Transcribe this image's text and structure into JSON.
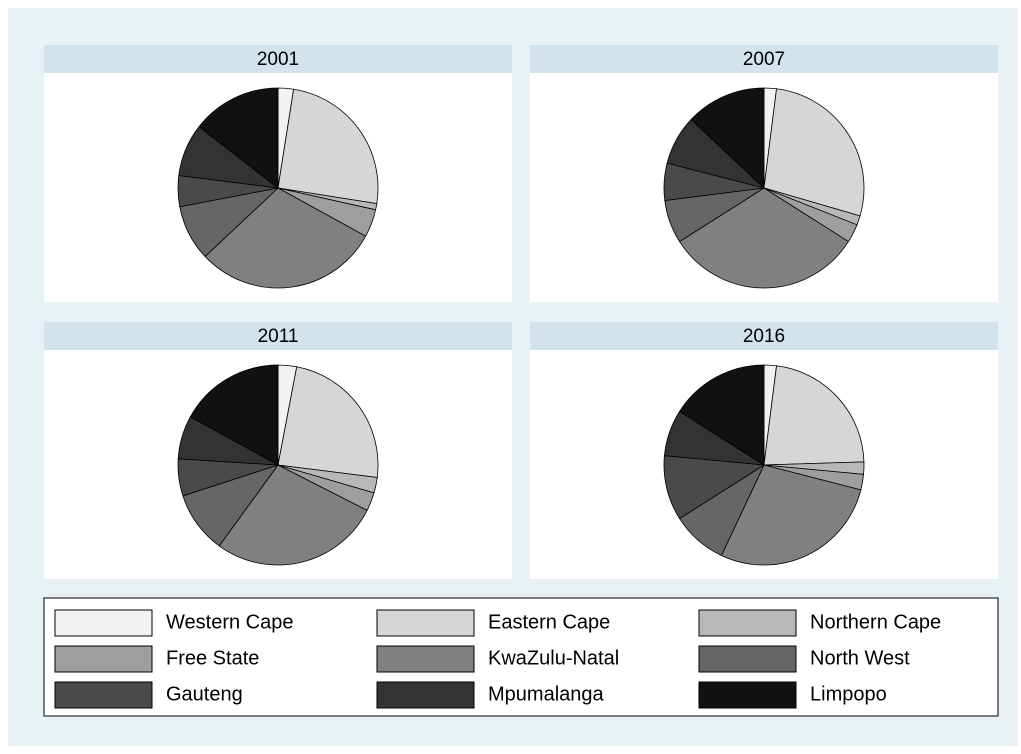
{
  "chart_data": [
    {
      "type": "pie",
      "title": "2001",
      "categories": [
        "Western Cape",
        "Eastern Cape",
        "Northern Cape",
        "Free State",
        "KwaZulu-Natal",
        "North West",
        "Gauteng",
        "Mpumalanga",
        "Limpopo"
      ],
      "colors": [
        "#f2f2f2",
        "#d6d6d6",
        "#b8b8b8",
        "#9e9e9e",
        "#808080",
        "#666666",
        "#4a4a4a",
        "#333333",
        "#111111"
      ],
      "values": [
        2.5,
        25,
        1,
        4.5,
        30,
        9,
        5,
        8.5,
        14.5
      ]
    },
    {
      "type": "pie",
      "title": "2007",
      "categories": [
        "Western Cape",
        "Eastern Cape",
        "Northern Cape",
        "Free State",
        "KwaZulu-Natal",
        "North West",
        "Gauteng",
        "Mpumalanga",
        "Limpopo"
      ],
      "colors": [
        "#f2f2f2",
        "#d6d6d6",
        "#b8b8b8",
        "#9e9e9e",
        "#808080",
        "#666666",
        "#4a4a4a",
        "#333333",
        "#111111"
      ],
      "values": [
        2,
        27.5,
        1.5,
        3,
        32,
        7,
        6,
        8,
        13
      ]
    },
    {
      "type": "pie",
      "title": "2011",
      "categories": [
        "Western Cape",
        "Eastern Cape",
        "Northern Cape",
        "Free State",
        "KwaZulu-Natal",
        "North West",
        "Gauteng",
        "Mpumalanga",
        "Limpopo"
      ],
      "colors": [
        "#f2f2f2",
        "#d6d6d6",
        "#b8b8b8",
        "#9e9e9e",
        "#808080",
        "#666666",
        "#4a4a4a",
        "#333333",
        "#111111"
      ],
      "values": [
        3,
        24,
        2.5,
        3,
        27.5,
        10,
        6,
        7,
        17
      ]
    },
    {
      "type": "pie",
      "title": "2016",
      "categories": [
        "Western Cape",
        "Eastern Cape",
        "Northern Cape",
        "Free State",
        "KwaZulu-Natal",
        "North West",
        "Gauteng",
        "Mpumalanga",
        "Limpopo"
      ],
      "colors": [
        "#f2f2f2",
        "#d6d6d6",
        "#b8b8b8",
        "#9e9e9e",
        "#808080",
        "#666666",
        "#4a4a4a",
        "#333333",
        "#111111"
      ],
      "values": [
        2,
        22.5,
        2,
        2.5,
        28,
        9,
        10.5,
        7.5,
        16
      ]
    }
  ]
}
